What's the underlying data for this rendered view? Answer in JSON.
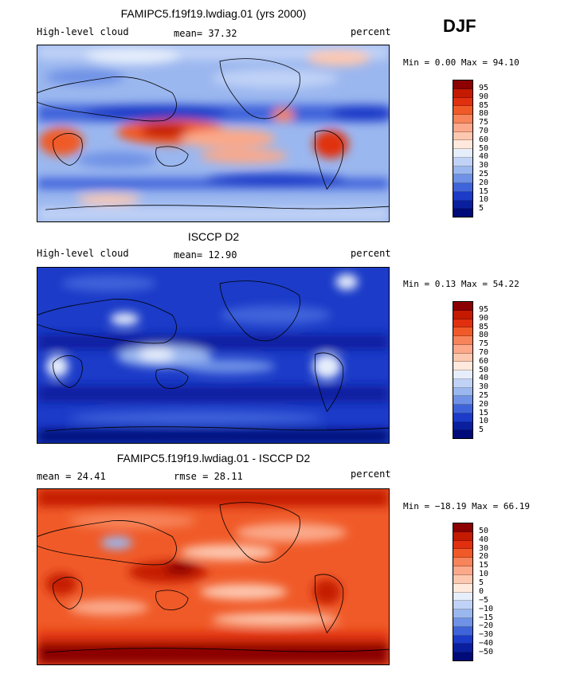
{
  "season": "DJF",
  "panels": [
    {
      "title": "FAMIPC5.f19f19.lwdiag.01 (yrs 2000)",
      "left_label": "High-level cloud",
      "mid_label": "mean=  37.32",
      "right_label": "percent",
      "minmax": "Min =   0.00 Max =  94.10",
      "colorbar": {
        "labels": [
          "95",
          "90",
          "85",
          "80",
          "75",
          "70",
          "60",
          "50",
          "40",
          "30",
          "25",
          "20",
          "15",
          "10",
          "5"
        ],
        "colors": [
          "#8b0000",
          "#c41a00",
          "#e03010",
          "#f05a28",
          "#f7845a",
          "#fba98a",
          "#fdc8b0",
          "#ffe9dd",
          "#e6eefc",
          "#c0d2f6",
          "#9bb7ef",
          "#6f92e6",
          "#3f64da",
          "#1b3bc8",
          "#0a1f9e",
          "#000a78"
        ]
      }
    },
    {
      "title": "ISCCP D2",
      "left_label": "High-level cloud",
      "mid_label": "mean=  12.90",
      "right_label": "percent",
      "minmax": "Min =   0.13 Max =  54.22",
      "colorbar": {
        "labels": [
          "95",
          "90",
          "85",
          "80",
          "75",
          "70",
          "60",
          "50",
          "40",
          "30",
          "25",
          "20",
          "15",
          "10",
          "5"
        ],
        "colors": [
          "#8b0000",
          "#c41a00",
          "#e03010",
          "#f05a28",
          "#f7845a",
          "#fba98a",
          "#fdc8b0",
          "#ffe9dd",
          "#e6eefc",
          "#c0d2f6",
          "#9bb7ef",
          "#6f92e6",
          "#3f64da",
          "#1b3bc8",
          "#0a1f9e",
          "#000a78"
        ]
      }
    },
    {
      "title": "FAMIPC5.f19f19.lwdiag.01 - ISCCP D2",
      "left_label": "mean =  24.41",
      "mid_label": "rmse =  28.11",
      "right_label": "percent",
      "minmax": "Min = −18.19 Max =  66.19",
      "colorbar": {
        "labels": [
          "50",
          "40",
          "30",
          "20",
          "15",
          "10",
          "5",
          "0",
          "−5",
          "−10",
          "−15",
          "−20",
          "−30",
          "−40",
          "−50"
        ],
        "colors": [
          "#8b0000",
          "#c41a00",
          "#e03010",
          "#f05a28",
          "#f7845a",
          "#fba98a",
          "#fdc8b0",
          "#ffe9dd",
          "#e6eefc",
          "#c0d2f6",
          "#9bb7ef",
          "#6f92e6",
          "#3f64da",
          "#1b3bc8",
          "#0a1f9e",
          "#000a78"
        ]
      }
    }
  ]
}
